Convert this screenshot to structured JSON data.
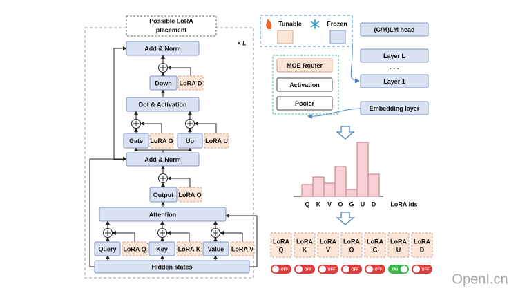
{
  "left": {
    "placement_box": [
      "Possible LoRA",
      "placement"
    ],
    "repeat": "× L",
    "add_norm_top": "Add & Norm",
    "down": "Down",
    "lora_d": "LoRA D",
    "dot_activation": "Dot & Activation",
    "gate": "Gate",
    "lora_g": "LoRA G",
    "up": "Up",
    "lora_u": "LoRA U",
    "add_norm": "Add & Norm",
    "output": "Output",
    "lora_o": "LoRA O",
    "attention": "Attention",
    "query": "Query",
    "lora_q": "LoRA Q",
    "key": "Key",
    "lora_k": "LoRA K",
    "value": "Value",
    "lora_v": "LoRA V",
    "hidden_states": "Hidden states"
  },
  "legend": {
    "tunable": "Tunable",
    "frozen": "Frozen"
  },
  "right": {
    "head": "(C/M)LM head",
    "layer_l": "Layer L",
    "dots": "· · ·",
    "layer_1": "Layer 1",
    "embedding": "Embedding layer",
    "moe_router": "MOE Router",
    "activation": "Activation",
    "pooler": "Pooler"
  },
  "histogram": {
    "categories": [
      "Q",
      "K",
      "V",
      "O",
      "G",
      "U",
      "D"
    ],
    "values": [
      17,
      28,
      19,
      43,
      10,
      78,
      32
    ],
    "x_label": "LoRA ids"
  },
  "experts": [
    {
      "title": "LoRA",
      "id": "Q",
      "switch": "OFF"
    },
    {
      "title": "LoRA",
      "id": "K",
      "switch": "OFF"
    },
    {
      "title": "LoRA",
      "id": "V",
      "switch": "OFF"
    },
    {
      "title": "LoRA",
      "id": "O",
      "switch": "OFF"
    },
    {
      "title": "LoRA",
      "id": "G",
      "switch": "OFF"
    },
    {
      "title": "LoRA",
      "id": "U",
      "switch": "ON"
    },
    {
      "title": "LoRA",
      "id": "D",
      "switch": "OFF"
    }
  ],
  "watermark": "OpenI.cn"
}
